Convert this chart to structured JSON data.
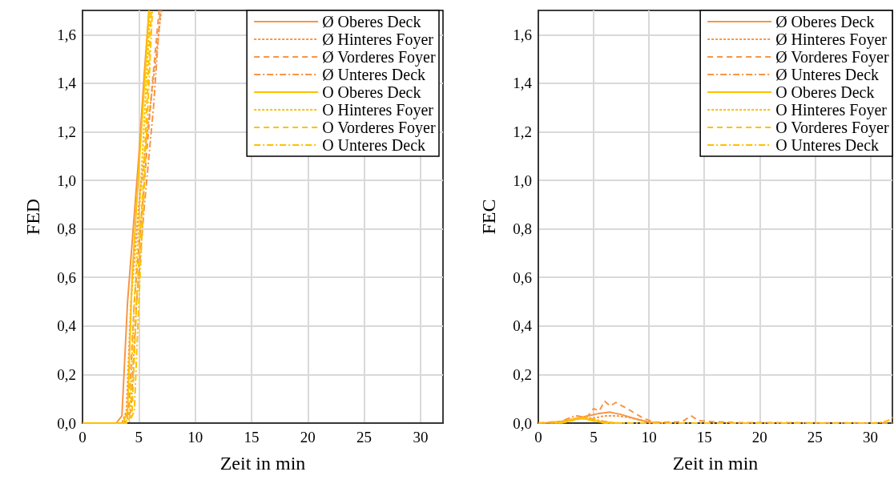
{
  "chart_data": [
    {
      "type": "line",
      "xlabel": "Zeit in min",
      "ylabel": "FED",
      "xlim": [
        0,
        32
      ],
      "xticks": [
        0,
        5,
        10,
        15,
        20,
        25,
        30
      ],
      "ylim": [
        0,
        1.7
      ],
      "yticks": [
        {
          "value": 0,
          "label": "0,0"
        },
        {
          "value": 0.2,
          "label": "0,2"
        },
        {
          "value": 0.4,
          "label": "0,4"
        },
        {
          "value": 0.6,
          "label": "0,6"
        },
        {
          "value": 0.8,
          "label": "0,8"
        },
        {
          "value": 1.0,
          "label": "1,0"
        },
        {
          "value": 1.2,
          "label": "1,2"
        },
        {
          "value": 1.4,
          "label": "1,4"
        },
        {
          "value": 1.6,
          "label": "1,6"
        }
      ],
      "grid": true,
      "legend": "top right",
      "series": [
        {
          "name": "Ø Oberes Deck",
          "color": "#f79646",
          "line_style": "solid",
          "x": [
            0,
            3,
            3.5,
            4,
            4.5,
            5,
            5.5,
            5.9
          ],
          "values": [
            0,
            0,
            0.03,
            0.5,
            0.8,
            1.1,
            1.45,
            1.7
          ]
        },
        {
          "name": "Ø Hinteres Foyer",
          "color": "#f79646",
          "line_style": "dotted",
          "x": [
            0,
            3.5,
            3.9,
            4.3,
            5,
            6,
            7
          ],
          "values": [
            0,
            0,
            0.05,
            0.5,
            0.9,
            1.3,
            1.7
          ]
        },
        {
          "name": "Ø Vorderes Foyer",
          "color": "#f79646",
          "line_style": "dashed",
          "x": [
            0,
            3.7,
            4.1,
            4.6,
            5.5,
            6.2,
            6.8
          ],
          "values": [
            0,
            0,
            0.05,
            0.5,
            1.0,
            1.4,
            1.7
          ]
        },
        {
          "name": "Ø Unteres Deck",
          "color": "#f79646",
          "line_style": "dashdot",
          "x": [
            0,
            3.8,
            4.3,
            4.8,
            5.5,
            6.3,
            6.9
          ],
          "values": [
            0,
            0,
            0.05,
            0.5,
            0.9,
            1.3,
            1.7
          ]
        },
        {
          "name": "O Oberes Deck",
          "color": "#ffc000",
          "line_style": "solid",
          "x": [
            0,
            3.6,
            4,
            4.4,
            5,
            5.5,
            5.9
          ],
          "values": [
            0,
            0,
            0.05,
            0.6,
            1.05,
            1.4,
            1.7
          ]
        },
        {
          "name": "O Hinteres Foyer",
          "color": "#ffc000",
          "line_style": "dotted",
          "x": [
            0,
            3.8,
            4.2,
            4.6,
            5.2,
            6
          ],
          "values": [
            0,
            0,
            0.05,
            0.5,
            1.0,
            1.7
          ]
        },
        {
          "name": "O Vorderes Foyer",
          "color": "#ffc000",
          "line_style": "dashed",
          "x": [
            0,
            4,
            4.4,
            4.8,
            5.4,
            6.1
          ],
          "values": [
            0,
            0,
            0.05,
            0.5,
            1.0,
            1.7
          ]
        },
        {
          "name": "O Unteres Deck",
          "color": "#ffc000",
          "line_style": "dashdot",
          "x": [
            0,
            4.1,
            4.6,
            5,
            5.6,
            6.2
          ],
          "values": [
            0,
            0,
            0.05,
            0.5,
            1.1,
            1.7
          ]
        }
      ]
    },
    {
      "type": "line",
      "xlabel": "Zeit in min",
      "ylabel": "FEC",
      "xlim": [
        0,
        32
      ],
      "xticks": [
        0,
        5,
        10,
        15,
        20,
        25,
        30
      ],
      "ylim": [
        0,
        1.7
      ],
      "yticks": [
        {
          "value": 0,
          "label": "0,0"
        },
        {
          "value": 0.2,
          "label": "0,2"
        },
        {
          "value": 0.4,
          "label": "0,4"
        },
        {
          "value": 0.6,
          "label": "0,6"
        },
        {
          "value": 0.8,
          "label": "0,8"
        },
        {
          "value": 1.0,
          "label": "1,0"
        },
        {
          "value": 1.2,
          "label": "1,2"
        },
        {
          "value": 1.4,
          "label": "1,4"
        },
        {
          "value": 1.6,
          "label": "1,6"
        }
      ],
      "grid": true,
      "legend": "top right",
      "series": [
        {
          "name": "Ø Oberes Deck",
          "color": "#f79646",
          "line_style": "solid",
          "x": [
            0.5,
            2,
            3.5,
            4.5,
            5.5,
            6.5,
            7.5,
            9,
            10,
            11
          ],
          "values": [
            0,
            0.005,
            0.02,
            0.03,
            0.04,
            0.045,
            0.035,
            0.015,
            0.003,
            0
          ]
        },
        {
          "name": "Ø Hinteres Foyer",
          "color": "#f79646",
          "line_style": "dotted",
          "x": [
            1,
            2,
            3.5,
            5,
            6,
            7,
            8,
            9.5,
            10.5,
            12
          ],
          "values": [
            0,
            0.005,
            0.02,
            0.02,
            0.03,
            0.03,
            0.025,
            0.01,
            0.002,
            0
          ]
        },
        {
          "name": "Ø Vorderes Foyer",
          "color": "#f79646",
          "line_style": "dashed",
          "x": [
            0,
            3,
            4.5,
            5,
            5.5,
            6,
            6.5,
            7,
            8,
            9.5,
            10.5,
            13,
            13.8,
            14.5,
            16,
            18,
            32
          ],
          "values": [
            0,
            0.01,
            0.03,
            0.06,
            0.05,
            0.09,
            0.07,
            0.085,
            0.06,
            0.02,
            0.003,
            0.005,
            0.03,
            0.01,
            0.005,
            0.002,
            0
          ]
        },
        {
          "name": "Ø Unteres Deck",
          "color": "#f79646",
          "line_style": "dashdot",
          "x": [
            1.2,
            2,
            3,
            3.5,
            4.5,
            5.5,
            7
          ],
          "values": [
            0,
            0.005,
            0.025,
            0.03,
            0.02,
            0.01,
            0
          ]
        },
        {
          "name": "O Oberes Deck",
          "color": "#ffc000",
          "line_style": "solid",
          "x": [
            1.5,
            2.5,
            3,
            4,
            5,
            6,
            7.5
          ],
          "values": [
            0,
            0.005,
            0.015,
            0.02,
            0.01,
            0.003,
            0
          ]
        },
        {
          "name": "O Hinteres Foyer",
          "color": "#ffc000",
          "line_style": "dotted",
          "x": [
            1.8,
            2.8,
            4.2,
            5,
            5.8,
            6.8
          ],
          "values": [
            0,
            0.008,
            0.026,
            0.018,
            0.006,
            0
          ]
        },
        {
          "name": "O Vorderes Foyer",
          "color": "#ffc000",
          "line_style": "dashed",
          "x": [
            2,
            2.6,
            3.8,
            5,
            6,
            8
          ],
          "values": [
            0,
            0.005,
            0.02,
            0.01,
            0.002,
            0
          ]
        },
        {
          "name": "O Unteres Deck",
          "color": "#ffc000",
          "line_style": "dashdot",
          "x": [
            0,
            3,
            4,
            5,
            6,
            30,
            31,
            31.6,
            32
          ],
          "values": [
            0,
            0.01,
            0.02,
            0.01,
            0,
            0,
            0.003,
            0.01,
            0.025
          ]
        }
      ]
    }
  ]
}
